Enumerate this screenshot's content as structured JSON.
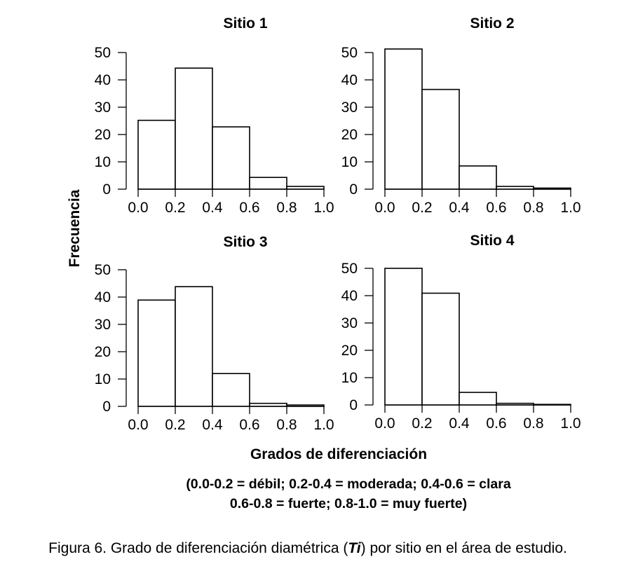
{
  "chart_data": [
    {
      "type": "bar",
      "title": "Sitio 1",
      "bins": [
        [
          0.0,
          0.2
        ],
        [
          0.2,
          0.4
        ],
        [
          0.4,
          0.6
        ],
        [
          0.6,
          0.8
        ],
        [
          0.8,
          1.0
        ]
      ],
      "values": [
        25.2,
        44.3,
        22.8,
        4.3,
        1.0
      ],
      "xticks": [
        "0.0",
        "0.2",
        "0.4",
        "0.6",
        "0.8",
        "1.0"
      ],
      "yticks": [
        "0",
        "10",
        "20",
        "30",
        "40",
        "50"
      ],
      "xlim": [
        0,
        1.0
      ],
      "ylim": [
        0,
        50
      ],
      "xlabel": "Grados de diferenciación",
      "ylabel": "Frecuencia"
    },
    {
      "type": "bar",
      "title": "Sitio 2",
      "bins": [
        [
          0.0,
          0.2
        ],
        [
          0.2,
          0.4
        ],
        [
          0.4,
          0.6
        ],
        [
          0.6,
          0.8
        ],
        [
          0.8,
          1.0
        ]
      ],
      "values": [
        51.3,
        36.5,
        8.5,
        1.0,
        0.4
      ],
      "xticks": [
        "0.0",
        "0.2",
        "0.4",
        "0.6",
        "0.8",
        "1.0"
      ],
      "yticks": [
        "0",
        "10",
        "20",
        "30",
        "40",
        "50"
      ],
      "xlim": [
        0,
        1.0
      ],
      "ylim": [
        0,
        50
      ],
      "xlabel": "Grados de diferenciación",
      "ylabel": "Frecuencia"
    },
    {
      "type": "bar",
      "title": "Sitio 3",
      "bins": [
        [
          0.0,
          0.2
        ],
        [
          0.2,
          0.4
        ],
        [
          0.4,
          0.6
        ],
        [
          0.6,
          0.8
        ],
        [
          0.8,
          1.0
        ]
      ],
      "values": [
        38.9,
        43.8,
        12.0,
        1.1,
        0.5
      ],
      "xticks": [
        "0.0",
        "0.2",
        "0.4",
        "0.6",
        "0.8",
        "1.0"
      ],
      "yticks": [
        "0",
        "10",
        "20",
        "30",
        "40",
        "50"
      ],
      "xlim": [
        0,
        1.0
      ],
      "ylim": [
        0,
        50
      ],
      "xlabel": "Grados de diferenciación",
      "ylabel": "Frecuencia"
    },
    {
      "type": "bar",
      "title": "Sitio 4",
      "bins": [
        [
          0.0,
          0.2
        ],
        [
          0.2,
          0.4
        ],
        [
          0.4,
          0.6
        ],
        [
          0.6,
          0.8
        ],
        [
          0.8,
          1.0
        ]
      ],
      "values": [
        50.0,
        40.9,
        4.6,
        0.6,
        0.2
      ],
      "xticks": [
        "0.0",
        "0.2",
        "0.4",
        "0.6",
        "0.8",
        "1.0"
      ],
      "yticks": [
        "0",
        "10",
        "20",
        "30",
        "40",
        "50"
      ],
      "xlim": [
        0,
        1.0
      ],
      "ylim": [
        0,
        50
      ],
      "xlabel": "Grados de diferenciación",
      "ylabel": "Frecuencia"
    }
  ],
  "shared_axes": {
    "ylabel": "Frecuencia",
    "xlabel": "Grados de diferenciación"
  },
  "note": {
    "line1": "(0.0-0.2 = débil; 0.2-0.4 = moderada; 0.4-0.6 = clara",
    "line2": "0.6-0.8 = fuerte; 0.8-1.0 = muy fuerte)"
  },
  "caption": {
    "prefix": "Figura 6. Grado de diferenciación diamétrica (",
    "symbol": "Ti",
    "suffix": ") por sitio en el área de estudio."
  },
  "colors": {
    "bar_fill": "#ffffff",
    "bar_stroke": "#000000",
    "text": "#000000",
    "background": "#ffffff"
  }
}
